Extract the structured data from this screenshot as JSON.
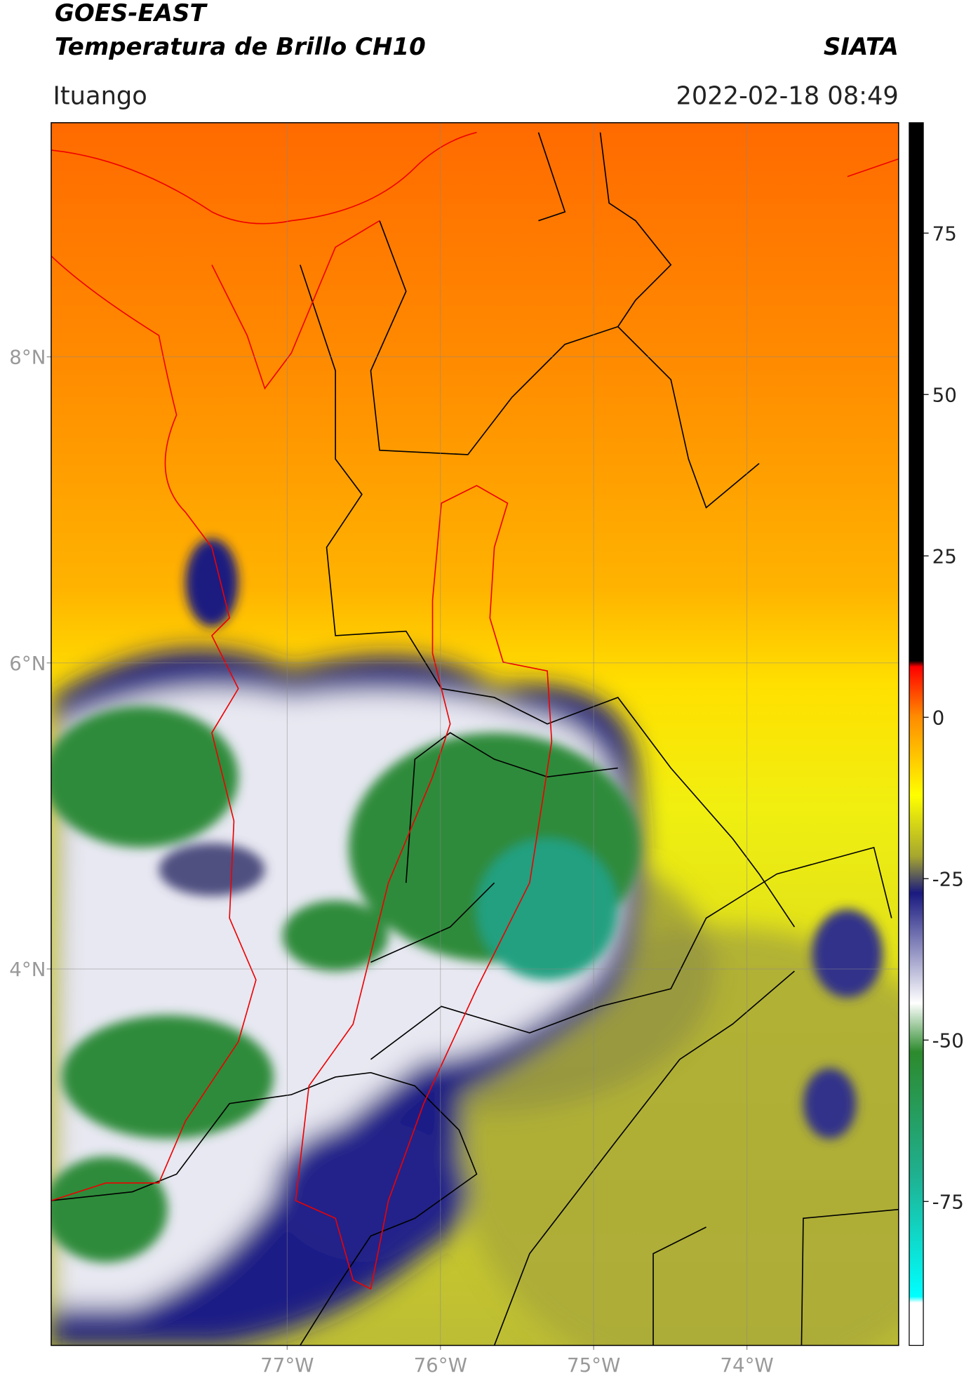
{
  "header": {
    "title_line1": "GOES-EAST",
    "title_line2": "Temperatura de Brillo CH10",
    "source": "SIATA",
    "location": "Ituango",
    "datetime": "2022-02-18 08:49"
  },
  "map": {
    "xlim": [
      -78.54,
      -73.01
    ],
    "ylim": [
      1.54,
      9.53
    ],
    "lat_ticks": [
      {
        "value": 8,
        "label": "8°N"
      },
      {
        "value": 6,
        "label": "6°N"
      },
      {
        "value": 4,
        "label": "4°N"
      }
    ],
    "lon_ticks": [
      {
        "value": -77,
        "label": "77°W"
      },
      {
        "value": -76,
        "label": "76°W"
      },
      {
        "value": -75,
        "label": "75°W"
      },
      {
        "value": -74,
        "label": "74°W"
      }
    ]
  },
  "colorbar": {
    "lim": [
      -97.3,
      92.1
    ],
    "ticks": [
      75,
      50,
      25,
      0,
      -25,
      -50,
      -75
    ]
  }
}
